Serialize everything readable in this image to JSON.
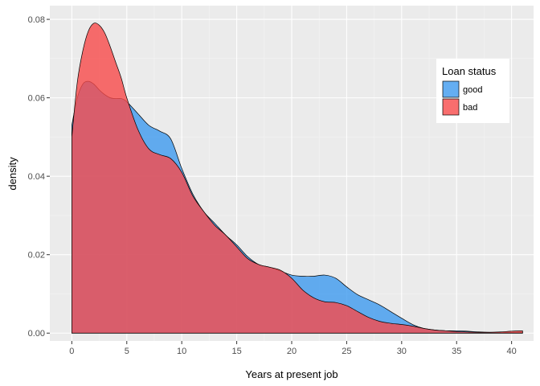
{
  "chart_data": {
    "type": "area",
    "subtype": "density",
    "xlabel": "Years at present job",
    "ylabel": "density",
    "xlim": [
      -2,
      42
    ],
    "ylim": [
      -0.002,
      0.0835
    ],
    "x_ticks": [
      0,
      5,
      10,
      15,
      20,
      25,
      30,
      35,
      40
    ],
    "y_ticks": [
      0.0,
      0.02,
      0.04,
      0.06,
      0.08
    ],
    "y_tick_labels": [
      "0.00",
      "0.02",
      "0.04",
      "0.06",
      "0.08"
    ],
    "grid": true,
    "legend": {
      "title": "Loan status",
      "position": "right",
      "entries": [
        {
          "name": "good",
          "color": "#3d9aef"
        },
        {
          "name": "bad",
          "color": "#f84a4a"
        }
      ]
    },
    "series": [
      {
        "name": "good",
        "color": "#3d9aef",
        "x": [
          0,
          0.5,
          1,
          1.5,
          2,
          2.5,
          3,
          3.5,
          4,
          4.5,
          5,
          6,
          7,
          8,
          9,
          10,
          11,
          12,
          13,
          14,
          15,
          16,
          17,
          18,
          19,
          20,
          21,
          22,
          23,
          24,
          25,
          26,
          27,
          28,
          29,
          30,
          31,
          32,
          33,
          34,
          35,
          36,
          37,
          38,
          39,
          40,
          41
        ],
        "y": [
          0.053,
          0.06,
          0.0635,
          0.0642,
          0.0635,
          0.062,
          0.0608,
          0.06,
          0.0598,
          0.0598,
          0.059,
          0.056,
          0.053,
          0.0515,
          0.0495,
          0.042,
          0.0355,
          0.031,
          0.028,
          0.025,
          0.0225,
          0.0195,
          0.0175,
          0.0168,
          0.0158,
          0.0148,
          0.0145,
          0.0145,
          0.0148,
          0.014,
          0.0118,
          0.0098,
          0.0085,
          0.0072,
          0.0055,
          0.0038,
          0.0022,
          0.0012,
          0.0008,
          0.0006,
          0.0006,
          0.0005,
          0.0003,
          0.0002,
          0.0002,
          0.0002,
          0.0002
        ]
      },
      {
        "name": "bad",
        "color": "#f84a4a",
        "x": [
          0,
          0.5,
          1,
          1.5,
          2,
          2.5,
          3,
          3.5,
          4,
          4.5,
          5,
          6,
          7,
          8,
          9,
          10,
          11,
          12,
          13,
          14,
          15,
          16,
          17,
          18,
          19,
          20,
          21,
          22,
          23,
          24,
          25,
          26,
          27,
          28,
          29,
          30,
          31,
          32,
          33,
          34,
          35,
          36,
          37,
          38,
          39,
          40,
          41
        ],
        "y": [
          0.05,
          0.064,
          0.072,
          0.077,
          0.079,
          0.0785,
          0.0765,
          0.073,
          0.069,
          0.065,
          0.06,
          0.052,
          0.047,
          0.0455,
          0.0445,
          0.041,
          0.035,
          0.031,
          0.0275,
          0.025,
          0.022,
          0.019,
          0.0175,
          0.0168,
          0.016,
          0.014,
          0.011,
          0.009,
          0.008,
          0.0078,
          0.007,
          0.0055,
          0.004,
          0.003,
          0.0025,
          0.0022,
          0.0018,
          0.0012,
          0.0008,
          0.0006,
          0.0004,
          0.0003,
          0.0002,
          0.0002,
          0.0003,
          0.0005,
          0.0006
        ]
      }
    ]
  }
}
